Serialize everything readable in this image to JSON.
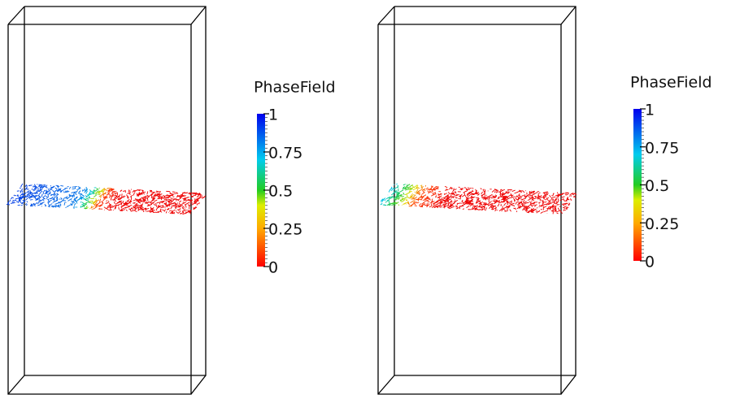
{
  "panels": [
    {
      "colorbar": {
        "title": "PhaseField",
        "ticks": [
          1,
          0.75,
          0.5,
          0.25,
          0
        ]
      }
    },
    {
      "colorbar": {
        "title": "PhaseField",
        "ticks": [
          1,
          0.75,
          0.5,
          0.25,
          0
        ]
      }
    }
  ]
}
